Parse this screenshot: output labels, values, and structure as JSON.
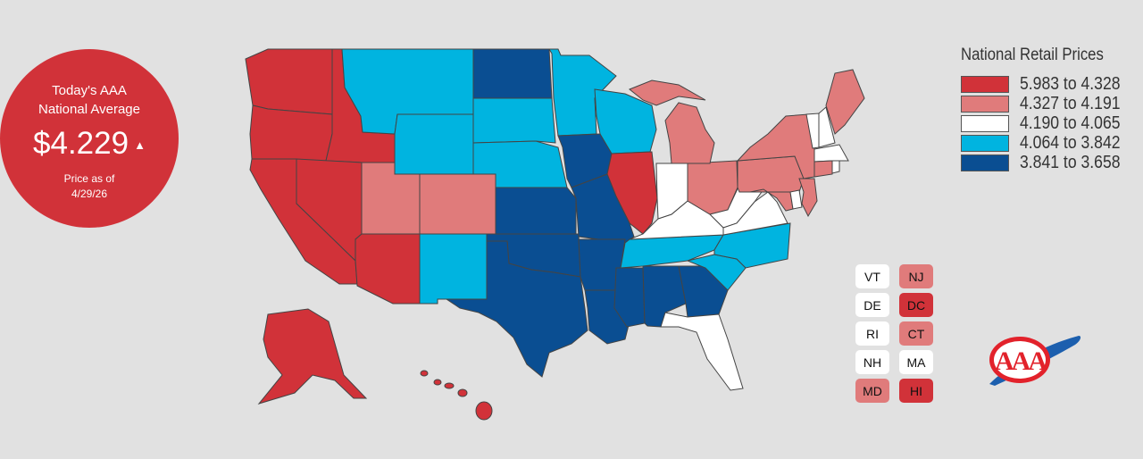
{
  "national_average": {
    "heading_line1": "Today's AAA",
    "heading_line2": "National Average",
    "price": "$4.229",
    "trend": "up",
    "trend_icon": "▲",
    "date_label": "Price as of",
    "date": "4/29/26"
  },
  "legend": {
    "title": "National Retail Prices",
    "tiers": [
      {
        "label": "5.983 to 4.328",
        "color": "#d13239"
      },
      {
        "label": "4.327 to 4.191",
        "color": "#e07b7b"
      },
      {
        "label": "4.190 to 4.065",
        "color": "#ffffff"
      },
      {
        "label": "4.064 to 3.842",
        "color": "#00b4e0"
      },
      {
        "label": "3.841 to 3.658",
        "color": "#0a4e92"
      }
    ]
  },
  "states": {
    "WA": 0,
    "OR": 0,
    "CA": 0,
    "NV": 0,
    "ID": 0,
    "AZ": 0,
    "IL": 0,
    "AK": 0,
    "HI": 0,
    "DC": 0,
    "UT": 1,
    "CO": 1,
    "MI": 1,
    "OH": 1,
    "PA": 1,
    "NY": 1,
    "NJ": 1,
    "MD": 1,
    "ME": 1,
    "CT": 1,
    "IN": 2,
    "KY": 2,
    "WV": 2,
    "VA": 2,
    "FL": 2,
    "VT": 2,
    "NH": 2,
    "MA": 2,
    "RI": 2,
    "DE": 2,
    "MT": 3,
    "WY": 3,
    "SD": 3,
    "NE": 3,
    "MN": 3,
    "WI": 3,
    "NM": 3,
    "NC": 3,
    "SC": 3,
    "TN": 3,
    "ND": 4,
    "IA": 4,
    "MO": 4,
    "KS": 4,
    "OK": 4,
    "TX": 4,
    "AR": 4,
    "LA": 4,
    "MS": 4,
    "AL": 4,
    "GA": 4
  },
  "small_states": [
    {
      "code": "VT"
    },
    {
      "code": "NJ"
    },
    {
      "code": "DE"
    },
    {
      "code": "DC"
    },
    {
      "code": "RI"
    },
    {
      "code": "CT"
    },
    {
      "code": "NH"
    },
    {
      "code": "MA"
    },
    {
      "code": "MD"
    },
    {
      "code": "HI"
    }
  ],
  "logo": {
    "text": "AAA",
    "icon": "aaa-logo"
  }
}
